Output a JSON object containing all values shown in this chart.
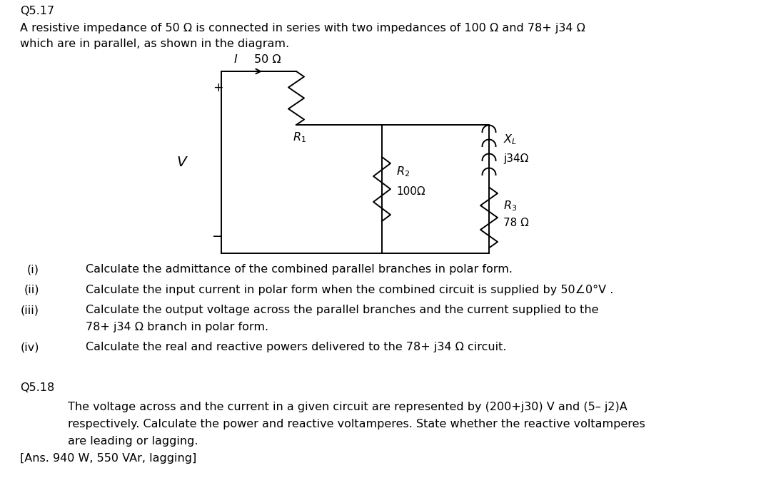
{
  "bg_color": "#ffffff",
  "text_color": "#000000",
  "fig_width": 10.8,
  "fig_height": 6.7,
  "title_q517": "Q5.17",
  "intro_text": "A resistive impedance of 50 Ω is connected in series with two impedances of 100 Ω and 78+ j34 Ω",
  "intro_text2": "which are in parallel, as shown in the diagram.",
  "q1_label": "(i)",
  "q1_text": "Calculate the admittance of the combined parallel branches in polar form.",
  "q2_label": "(ii)",
  "q2_text": "Calculate the input current in polar form when the combined circuit is supplied by 50∠0°V .",
  "q3_label": "(iii)",
  "q3_text": "Calculate the output voltage across the parallel branches and the current supplied to the",
  "q3_text2": "78+ j34 Ω branch in polar form.",
  "q4_label": "(iv)",
  "q4_text": "Calculate the real and reactive powers delivered to the 78+ j34 Ω circuit.",
  "q518_label": "Q5.18",
  "q518_indent": "    The voltage across and the current in a given circuit are represented by (200+j30) V and (5– j2)A",
  "q518_text2": "    respectively. Calculate the power and reactive voltamperes. State whether the reactive voltamperes",
  "q518_text3": "    are leading or lagging.",
  "q518_ans": "[Ans. 940 W, 550 VAr, lagging]"
}
